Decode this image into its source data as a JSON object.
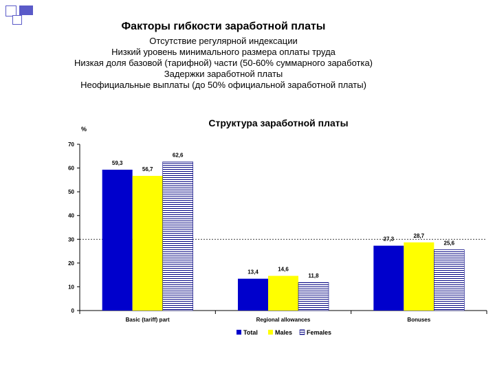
{
  "slide": {
    "title": "Факторы гибкости заработной платы",
    "bullets": [
      "Отсутствие регулярной индексации",
      "Низкий уровень минимального размера оплаты труда",
      "Низкая доля базовой (тарифной) части (50-60% суммарного заработка)",
      "Задержки заработной платы",
      "Неофициальные выплаты (до 50% официальной заработной платы)"
    ]
  },
  "colors": {
    "total": "#0000CC",
    "males": "#FFFF00",
    "females_fill": "#FFFFFF",
    "females_lines": "#000080",
    "corner_squares": "#5A5AC8"
  },
  "chart_data": {
    "type": "bar",
    "title": "Структура заработной платы",
    "ylabel": "%",
    "xlabel": "",
    "ylim": [
      0,
      70
    ],
    "yticks": [
      "0",
      "10",
      "20",
      "30",
      "40",
      "50",
      "60",
      "70"
    ],
    "categories": [
      "Basic (tariff) part",
      "Regional allowances",
      "Bonuses"
    ],
    "series": [
      {
        "name": "Total",
        "values": [
          59.3,
          13.4,
          27.3
        ],
        "labels": [
          "59,3",
          "13,4",
          "27,3"
        ]
      },
      {
        "name": "Males",
        "values": [
          56.7,
          14.6,
          28.7
        ],
        "labels": [
          "56,7",
          "14,6",
          "28,7"
        ]
      },
      {
        "name": "Females",
        "values": [
          62.6,
          11.8,
          25.6
        ],
        "labels": [
          "62,6",
          "11,8",
          "25,6"
        ]
      }
    ],
    "reference_line": 30,
    "grid": false,
    "legend_position": "bottom"
  }
}
